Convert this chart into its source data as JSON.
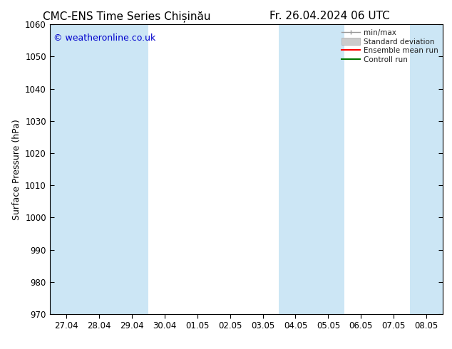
{
  "title_left": "CMC-ENS Time Series Chișinău",
  "title_right": "Fr. 26.04.2024 06 UTC",
  "ylabel": "Surface Pressure (hPa)",
  "ylim": [
    970,
    1060
  ],
  "yticks": [
    970,
    980,
    990,
    1000,
    1010,
    1020,
    1030,
    1040,
    1050,
    1060
  ],
  "xtick_labels": [
    "27.04",
    "28.04",
    "29.04",
    "30.04",
    "01.05",
    "02.05",
    "03.05",
    "04.05",
    "05.05",
    "06.05",
    "07.05",
    "08.05"
  ],
  "watermark": "© weatheronline.co.uk",
  "watermark_color": "#0000cc",
  "background_color": "#ffffff",
  "plot_bg_color": "#ffffff",
  "shaded_bands_color": "#cce6f5",
  "shaded_x_indices": [
    0,
    1,
    2,
    7,
    8,
    11
  ],
  "legend_labels": [
    "min/max",
    "Standard deviation",
    "Ensemble mean run",
    "Controll run"
  ],
  "legend_colors_line": [
    "#999999",
    "#cccccc",
    "#ff0000",
    "#007700"
  ],
  "title_fontsize": 11,
  "tick_fontsize": 8.5,
  "ylabel_fontsize": 9,
  "watermark_fontsize": 9,
  "legend_fontsize": 7.5
}
